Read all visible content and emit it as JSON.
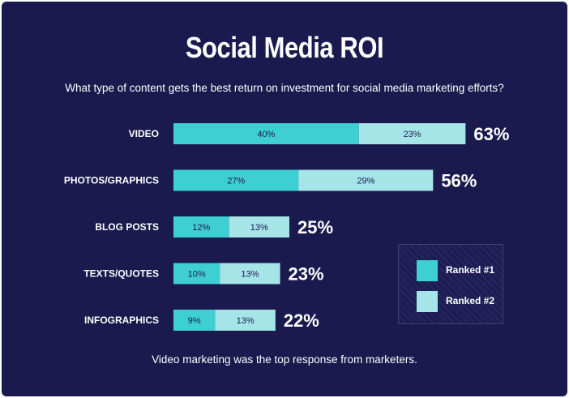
{
  "colors": {
    "background": "#1a1a4e",
    "ranked1": "#3ecfd3",
    "ranked2": "#a5e5e8",
    "text": "#ffffff"
  },
  "title": "Social Media ROI",
  "subtitle": "What type of content gets the best return on investment for social media marketing efforts?",
  "footer": "Video marketing was the top response from marketers.",
  "chart_data": {
    "type": "bar",
    "orientation": "horizontal",
    "stacked": true,
    "title": "Social Media ROI",
    "categories": [
      "VIDEO",
      "PHOTOS/GRAPHICS",
      "BLOG POSTS",
      "TEXTS/QUOTES",
      "INFOGRAPHICS"
    ],
    "series": [
      {
        "name": "Ranked #1",
        "values": [
          40,
          27,
          12,
          10,
          9
        ],
        "labels": [
          "40%",
          "27%",
          "12%",
          "10%",
          "9%"
        ],
        "color": "#3ecfd3"
      },
      {
        "name": "Ranked #2",
        "values": [
          23,
          29,
          13,
          13,
          13
        ],
        "labels": [
          "23%",
          "29%",
          "13%",
          "13%",
          "13%"
        ],
        "color": "#a5e5e8"
      }
    ],
    "totals": [
      63,
      56,
      25,
      23,
      22
    ],
    "total_labels": [
      "63%",
      "56%",
      "25%",
      "23%",
      "22%"
    ],
    "legend": {
      "placement": "bottom-right",
      "items": [
        {
          "label": "Ranked #1",
          "color": "#3ecfd3"
        },
        {
          "label": "Ranked #2",
          "color": "#a5e5e8"
        }
      ]
    },
    "grid": false,
    "xlabel": "",
    "ylabel": ""
  }
}
